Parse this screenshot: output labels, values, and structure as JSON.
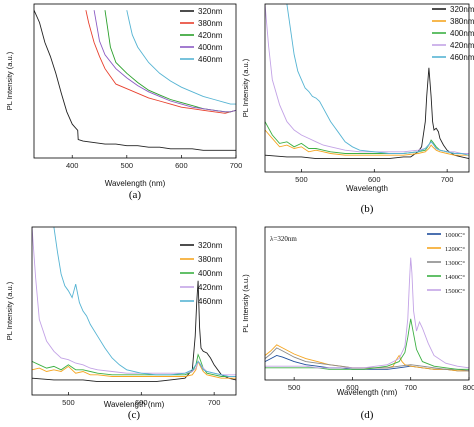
{
  "chart_data": [
    {
      "panel": "a",
      "caption": "(a)",
      "type": "line",
      "xlabel": "Wavelength (nm)",
      "ylabel": "PL Intensity (a.u.)",
      "xlim": [
        330,
        700
      ],
      "ylim": [
        0,
        100
      ],
      "xticks": [
        400,
        500,
        600,
        700
      ],
      "legend_position": "top-right",
      "series": [
        {
          "name": "320nm",
          "color": "#222222",
          "x": [
            330,
            340,
            350,
            360,
            370,
            380,
            390,
            400,
            405,
            410,
            411,
            420,
            440,
            460,
            480,
            500,
            520,
            540,
            560,
            580,
            600,
            620,
            640,
            660,
            670,
            680,
            690,
            700
          ],
          "y": [
            96,
            88,
            75,
            66,
            55,
            42,
            30,
            22,
            20,
            18,
            12,
            11,
            10,
            9,
            9,
            8,
            8,
            7,
            7,
            6,
            6,
            6,
            5,
            5,
            5,
            5,
            5,
            5
          ]
        },
        {
          "name": "380nm",
          "color": "#e8402e",
          "x": [
            425,
            430,
            440,
            450,
            460,
            470,
            480,
            500,
            520,
            540,
            560,
            580,
            600,
            620,
            640,
            660,
            680,
            690,
            700
          ],
          "y": [
            96,
            88,
            75,
            66,
            58,
            53,
            48,
            45,
            42,
            39,
            37,
            35,
            33,
            32,
            31,
            30,
            29,
            30,
            31
          ]
        },
        {
          "name": "420nm",
          "color": "#2ca02c",
          "x": [
            460,
            465,
            470,
            480,
            500,
            520,
            540,
            560,
            580,
            600,
            620,
            640,
            660,
            680,
            690,
            700
          ],
          "y": [
            96,
            84,
            72,
            62,
            55,
            49,
            44,
            41,
            38,
            36,
            34,
            32,
            31,
            30,
            30,
            31
          ]
        },
        {
          "name": "400nm",
          "color": "#8c5cc4",
          "x": [
            440,
            445,
            450,
            460,
            480,
            500,
            520,
            540,
            560,
            580,
            600,
            620,
            640,
            660,
            680,
            690,
            700
          ],
          "y": [
            96,
            86,
            76,
            67,
            58,
            52,
            47,
            43,
            40,
            37,
            35,
            33,
            32,
            31,
            30,
            30,
            31
          ]
        },
        {
          "name": "460nm",
          "color": "#56b4d3",
          "x": [
            500,
            505,
            510,
            520,
            540,
            560,
            580,
            600,
            620,
            640,
            660,
            680,
            690,
            700
          ],
          "y": [
            96,
            88,
            80,
            72,
            62,
            55,
            50,
            46,
            43,
            40,
            38,
            36,
            35,
            35
          ]
        }
      ]
    },
    {
      "panel": "b",
      "caption": "(b)",
      "type": "line",
      "xlabel": "Wavelength",
      "ylabel": "PL Intensity (a.u.)",
      "xlim": [
        450,
        730
      ],
      "ylim": [
        0,
        100
      ],
      "xticks": [
        500,
        600,
        700
      ],
      "legend_position": "top-right",
      "series": [
        {
          "name": "320nm",
          "color": "#222222",
          "x": [
            450,
            480,
            500,
            520,
            540,
            560,
            580,
            600,
            620,
            640,
            650,
            660,
            665,
            670,
            672,
            675,
            678,
            680,
            682,
            685,
            688,
            690,
            695,
            700,
            710,
            720,
            730
          ],
          "y": [
            10,
            9,
            9,
            8,
            8,
            8,
            8,
            8,
            8,
            9,
            9,
            12,
            15,
            30,
            45,
            62,
            45,
            30,
            25,
            26,
            24,
            20,
            16,
            13,
            10,
            9,
            8
          ]
        },
        {
          "name": "380nm",
          "color": "#f5a623",
          "x": [
            450,
            460,
            470,
            480,
            490,
            500,
            510,
            520,
            530,
            540,
            560,
            580,
            600,
            620,
            640,
            660,
            670,
            675,
            678,
            680,
            685,
            690,
            700,
            710,
            720,
            730
          ],
          "y": [
            25,
            20,
            15,
            16,
            14,
            15,
            12,
            13,
            12,
            11,
            10,
            10,
            10,
            10,
            10,
            11,
            12,
            14,
            16,
            15,
            13,
            12,
            11,
            10,
            10,
            10
          ]
        },
        {
          "name": "400nm",
          "color": "#3cb043",
          "x": [
            450,
            460,
            470,
            480,
            490,
            500,
            510,
            520,
            530,
            540,
            560,
            580,
            600,
            620,
            640,
            660,
            670,
            675,
            678,
            680,
            685,
            690,
            700,
            710,
            720,
            730
          ],
          "y": [
            30,
            22,
            17,
            18,
            15,
            17,
            14,
            14,
            13,
            12,
            11,
            11,
            11,
            11,
            11,
            12,
            13,
            16,
            19,
            18,
            15,
            13,
            12,
            11,
            11,
            11
          ]
        },
        {
          "name": "420nm",
          "color": "#c3a3e6",
          "x": [
            450,
            455,
            460,
            470,
            480,
            490,
            500,
            510,
            520,
            530,
            540,
            560,
            580,
            600,
            620,
            640,
            660,
            670,
            675,
            678,
            680,
            685,
            690,
            700,
            710,
            720,
            730
          ],
          "y": [
            100,
            75,
            55,
            40,
            30,
            25,
            22,
            20,
            18,
            16,
            15,
            13,
            12,
            12,
            12,
            12,
            13,
            14,
            16,
            18,
            17,
            14,
            13,
            12,
            12,
            11,
            11
          ]
        },
        {
          "name": "460nm",
          "color": "#56b4d3",
          "x": [
            480,
            485,
            490,
            495,
            500,
            505,
            510,
            515,
            520,
            525,
            530,
            540,
            550,
            560,
            570,
            580,
            600,
            620,
            640,
            660,
            670,
            678,
            680,
            685,
            690,
            700,
            710,
            720,
            730
          ],
          "y": [
            100,
            85,
            70,
            60,
            55,
            50,
            48,
            45,
            44,
            42,
            38,
            30,
            24,
            18,
            15,
            13,
            12,
            11,
            11,
            12,
            14,
            18,
            17,
            14,
            13,
            12,
            11,
            11,
            10
          ]
        }
      ]
    },
    {
      "panel": "c",
      "caption": "(c)",
      "type": "line",
      "xlabel": "Wavelength (nm)",
      "ylabel": "PL Intensity (a.u.)",
      "xlim": [
        450,
        730
      ],
      "ylim": [
        0,
        100
      ],
      "xticks": [
        500,
        600,
        700
      ],
      "legend_position": "top-right",
      "series": [
        {
          "name": "320nm",
          "color": "#222222",
          "x": [
            450,
            480,
            500,
            520,
            540,
            560,
            580,
            600,
            620,
            640,
            660,
            670,
            674,
            676,
            678,
            680,
            682,
            685,
            690,
            695,
            700,
            710,
            720,
            730
          ],
          "y": [
            10,
            9,
            9,
            9,
            8,
            8,
            8,
            8,
            8,
            9,
            10,
            15,
            35,
            55,
            68,
            40,
            28,
            26,
            25,
            22,
            18,
            12,
            10,
            9
          ]
        },
        {
          "name": "380nm",
          "color": "#f5a623",
          "x": [
            450,
            460,
            470,
            480,
            490,
            500,
            510,
            520,
            530,
            540,
            560,
            580,
            600,
            620,
            640,
            660,
            670,
            675,
            678,
            680,
            685,
            690,
            700,
            710,
            720,
            730
          ],
          "y": [
            15,
            16,
            14,
            15,
            14,
            17,
            13,
            14,
            12,
            12,
            11,
            11,
            11,
            11,
            11,
            11,
            12,
            15,
            20,
            18,
            14,
            12,
            11,
            10,
            10,
            10
          ]
        },
        {
          "name": "400nm",
          "color": "#3cb043",
          "x": [
            450,
            460,
            470,
            480,
            490,
            500,
            510,
            520,
            530,
            540,
            560,
            580,
            600,
            620,
            640,
            660,
            670,
            675,
            678,
            680,
            685,
            690,
            700,
            710,
            720,
            730
          ],
          "y": [
            20,
            18,
            16,
            17,
            15,
            18,
            15,
            15,
            14,
            13,
            12,
            12,
            12,
            12,
            12,
            12,
            14,
            18,
            24,
            22,
            16,
            13,
            12,
            11,
            11,
            11
          ]
        },
        {
          "name": "420nm",
          "color": "#c3a3e6",
          "x": [
            450,
            455,
            460,
            470,
            480,
            490,
            500,
            510,
            520,
            530,
            540,
            560,
            580,
            600,
            620,
            640,
            660,
            670,
            675,
            678,
            680,
            685,
            690,
            700,
            710,
            720,
            730
          ],
          "y": [
            100,
            70,
            45,
            32,
            26,
            22,
            21,
            19,
            18,
            16,
            15,
            14,
            13,
            13,
            13,
            13,
            13,
            14,
            16,
            20,
            19,
            16,
            14,
            13,
            12,
            12,
            12
          ]
        },
        {
          "name": "460nm",
          "color": "#56b4d3",
          "x": [
            480,
            485,
            490,
            495,
            500,
            505,
            510,
            515,
            520,
            525,
            530,
            540,
            550,
            560,
            570,
            580,
            600,
            620,
            640,
            660,
            670,
            678,
            680,
            685,
            690,
            700,
            710,
            720,
            730
          ],
          "y": [
            100,
            85,
            72,
            65,
            62,
            58,
            66,
            55,
            50,
            47,
            42,
            35,
            28,
            22,
            18,
            15,
            13,
            12,
            12,
            13,
            15,
            20,
            19,
            15,
            14,
            13,
            12,
            11,
            11
          ]
        }
      ]
    },
    {
      "panel": "d",
      "caption": "(d)",
      "type": "line",
      "xlabel": "Wavelength (nm)",
      "ylabel": "PL Intensity (a.u.)",
      "annotation": "λ=320nm",
      "xlim": [
        450,
        800
      ],
      "ylim": [
        0,
        100
      ],
      "xticks": [
        500,
        600,
        700,
        800
      ],
      "legend_position": "top-right",
      "series": [
        {
          "name": "1000C°",
          "color": "#1f4e9c",
          "x": [
            450,
            460,
            470,
            480,
            500,
            520,
            540,
            560,
            580,
            600,
            620,
            640,
            660,
            680,
            700,
            720,
            740,
            760,
            780,
            800
          ],
          "y": [
            12,
            14,
            16,
            15,
            12,
            10,
            9,
            8,
            8,
            7,
            7,
            7,
            7,
            8,
            9,
            8,
            7,
            7,
            6,
            6
          ]
        },
        {
          "name": "1200C°",
          "color": "#f5a623",
          "x": [
            450,
            460,
            470,
            480,
            500,
            520,
            540,
            560,
            580,
            600,
            620,
            640,
            660,
            670,
            675,
            680,
            685,
            690,
            700,
            720,
            740,
            760,
            780,
            800
          ],
          "y": [
            16,
            19,
            23,
            21,
            17,
            14,
            12,
            10,
            9,
            8,
            8,
            8,
            8,
            9,
            13,
            16,
            12,
            10,
            9,
            8,
            7,
            7,
            6,
            6
          ]
        },
        {
          "name": "1300C°",
          "color": "#8a8a8a",
          "x": [
            450,
            460,
            470,
            480,
            500,
            520,
            540,
            560,
            580,
            600,
            620,
            640,
            660,
            680,
            700,
            720,
            740,
            760,
            780,
            800
          ],
          "y": [
            14,
            17,
            21,
            19,
            15,
            12,
            11,
            10,
            9,
            8,
            8,
            8,
            8,
            9,
            10,
            9,
            8,
            7,
            7,
            6
          ]
        },
        {
          "name": "1400C°",
          "color": "#3cb043",
          "x": [
            450,
            480,
            500,
            520,
            540,
            560,
            580,
            600,
            620,
            640,
            660,
            680,
            690,
            695,
            700,
            705,
            710,
            720,
            740,
            760,
            780,
            800
          ],
          "y": [
            8,
            8,
            8,
            8,
            8,
            7,
            7,
            7,
            7,
            8,
            9,
            12,
            18,
            28,
            40,
            30,
            20,
            12,
            9,
            8,
            7,
            7
          ]
        },
        {
          "name": "1500C°",
          "color": "#c3a3e6",
          "x": [
            450,
            480,
            500,
            520,
            540,
            560,
            580,
            600,
            620,
            640,
            660,
            680,
            690,
            695,
            698,
            700,
            702,
            705,
            710,
            715,
            720,
            730,
            740,
            760,
            780,
            800
          ],
          "y": [
            9,
            9,
            9,
            9,
            8,
            8,
            8,
            8,
            8,
            9,
            10,
            14,
            22,
            40,
            65,
            80,
            70,
            45,
            32,
            38,
            34,
            24,
            16,
            11,
            9,
            8
          ]
        }
      ]
    }
  ]
}
